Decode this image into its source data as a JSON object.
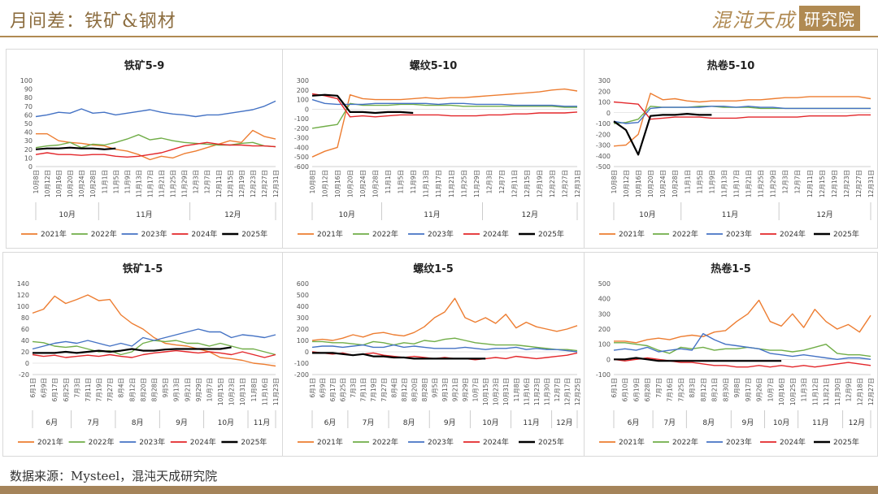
{
  "header": {
    "title": "月间差：铁矿&钢材",
    "logo_text": "混沌天成",
    "logo_box": "研究院"
  },
  "footer": {
    "source": "数据来源：Mysteel，混沌天成研究院"
  },
  "colors": {
    "2021年": "#ed7d31",
    "2022年": "#70ad47",
    "2023年": "#4472c4",
    "2024年": "#e3262a",
    "2025年": "#000000",
    "accent": "#b08a52"
  },
  "chart_data": [
    {
      "type": "line",
      "title": "铁矿5-9",
      "yticks": [
        "100",
        "90",
        "80",
        "70",
        "60",
        "50",
        "40",
        "30",
        "20",
        "10",
        "0"
      ],
      "ylim": [
        0,
        100
      ],
      "xticks": [
        "10月8日",
        "10月12日",
        "10月16日",
        "10月20日",
        "10月24日",
        "10月28日",
        "11月1日",
        "11月5日",
        "11月9日",
        "11月13日",
        "11月17日",
        "11月21日",
        "11月25日",
        "11月29日",
        "12月3日",
        "12月7日",
        "12月11日",
        "12月15日",
        "12月19日",
        "12月23日",
        "12月27日",
        "12月31日"
      ],
      "months": [
        "10月",
        "11月",
        "12月"
      ],
      "series": [
        {
          "name": "2021年",
          "values": [
            38,
            38,
            30,
            28,
            27,
            25,
            24,
            20,
            18,
            14,
            8,
            12,
            10,
            15,
            18,
            22,
            26,
            30,
            28,
            42,
            35,
            32
          ]
        },
        {
          "name": "2022年",
          "values": [
            22,
            24,
            25,
            28,
            22,
            26,
            25,
            28,
            32,
            37,
            31,
            33,
            30,
            28,
            27,
            26,
            25,
            25,
            27,
            28,
            24,
            23
          ]
        },
        {
          "name": "2023年",
          "values": [
            58,
            60,
            63,
            62,
            67,
            62,
            63,
            60,
            62,
            64,
            66,
            63,
            61,
            60,
            58,
            60,
            60,
            62,
            64,
            66,
            70,
            76
          ]
        },
        {
          "name": "2024年",
          "values": [
            14,
            16,
            14,
            14,
            13,
            14,
            14,
            12,
            11,
            12,
            14,
            16,
            20,
            24,
            26,
            28,
            26,
            25,
            25,
            24,
            24,
            23
          ]
        },
        {
          "name": "2025年",
          "values": [
            20,
            21,
            21,
            22,
            21,
            21,
            20,
            21,
            null,
            null,
            null,
            null,
            null,
            null,
            null,
            null,
            null,
            null,
            null,
            null,
            null,
            null
          ]
        }
      ],
      "legend": "bottom"
    },
    {
      "type": "line",
      "title": "螺纹5-10",
      "yticks": [
        "300",
        "200",
        "100",
        "0",
        "-100",
        "-200",
        "-300",
        "-400",
        "-500",
        "-600"
      ],
      "ylim": [
        -600,
        300
      ],
      "xticks": [
        "10月8日",
        "10月12日",
        "10月16日",
        "10月20日",
        "10月24日",
        "10月28日",
        "11月1日",
        "11月5日",
        "11月9日",
        "11月13日",
        "11月17日",
        "11月21日",
        "11月25日",
        "11月29日",
        "12月3日",
        "12月7日",
        "12月11日",
        "12月15日",
        "12月19日",
        "12月23日",
        "12月27日",
        "12月31日"
      ],
      "months": [
        "10月",
        "11月",
        "12月"
      ],
      "series": [
        {
          "name": "2021年",
          "values": [
            -500,
            -440,
            -400,
            150,
            110,
            100,
            100,
            100,
            110,
            120,
            110,
            120,
            120,
            130,
            140,
            150,
            160,
            170,
            180,
            200,
            210,
            190
          ]
        },
        {
          "name": "2022年",
          "values": [
            -200,
            -180,
            -160,
            60,
            40,
            40,
            40,
            50,
            50,
            40,
            40,
            40,
            30,
            30,
            30,
            30,
            30,
            30,
            30,
            30,
            20,
            20
          ]
        },
        {
          "name": "2023年",
          "values": [
            100,
            60,
            50,
            50,
            50,
            60,
            60,
            60,
            60,
            60,
            50,
            60,
            60,
            50,
            50,
            50,
            40,
            40,
            40,
            40,
            30,
            30
          ]
        },
        {
          "name": "2024年",
          "values": [
            160,
            140,
            110,
            -80,
            -70,
            -80,
            -70,
            -60,
            -60,
            -60,
            -60,
            -70,
            -70,
            -70,
            -60,
            -60,
            -50,
            -50,
            -40,
            -40,
            -40,
            -30
          ]
        },
        {
          "name": "2025年",
          "values": [
            140,
            150,
            140,
            -30,
            -30,
            -40,
            -30,
            -30,
            -40,
            null,
            null,
            null,
            null,
            null,
            null,
            null,
            null,
            null,
            null,
            null,
            null,
            null
          ]
        }
      ],
      "legend": "bottom"
    },
    {
      "type": "line",
      "title": "热卷5-10",
      "yticks": [
        "300",
        "200",
        "100",
        "0",
        "-100",
        "-200",
        "-300",
        "-400",
        "-500"
      ],
      "ylim": [
        -500,
        300
      ],
      "xticks": [
        "10月8日",
        "10月12日",
        "10月16日",
        "10月20日",
        "10月24日",
        "10月28日",
        "11月1日",
        "11月5日",
        "11月9日",
        "11月13日",
        "11月17日",
        "11月21日",
        "11月25日",
        "11月29日",
        "12月3日",
        "12月7日",
        "12月11日",
        "12月15日",
        "12月19日",
        "12月23日",
        "12月27日",
        "12月31日"
      ],
      "months": [
        "10月",
        "11月",
        "12月"
      ],
      "series": [
        {
          "name": "2021年",
          "values": [
            -310,
            -300,
            -200,
            180,
            120,
            130,
            110,
            100,
            110,
            110,
            110,
            120,
            120,
            130,
            140,
            140,
            150,
            150,
            150,
            150,
            150,
            130
          ]
        },
        {
          "name": "2022年",
          "values": [
            -100,
            -90,
            -60,
            60,
            50,
            50,
            50,
            60,
            60,
            50,
            50,
            50,
            40,
            40,
            40,
            40,
            40,
            40,
            40,
            40,
            40,
            40
          ]
        },
        {
          "name": "2023年",
          "values": [
            -80,
            -100,
            -90,
            40,
            50,
            50,
            50,
            50,
            60,
            60,
            50,
            60,
            50,
            50,
            40,
            40,
            40,
            40,
            40,
            40,
            40,
            40
          ]
        },
        {
          "name": "2024年",
          "values": [
            100,
            90,
            80,
            -60,
            -50,
            -40,
            -40,
            -40,
            -50,
            -50,
            -50,
            -40,
            -40,
            -40,
            -40,
            -40,
            -30,
            -30,
            -30,
            -30,
            -20,
            -20
          ]
        },
        {
          "name": "2025年",
          "values": [
            -80,
            -160,
            -390,
            -30,
            -20,
            -20,
            -10,
            -20,
            -20,
            null,
            null,
            null,
            null,
            null,
            null,
            null,
            null,
            null,
            null,
            null,
            null,
            null
          ]
        }
      ],
      "legend": "bottom"
    },
    {
      "type": "line",
      "title": "铁矿1-5",
      "yticks": [
        "140",
        "120",
        "100",
        "80",
        "60",
        "40",
        "20",
        "0",
        "-20"
      ],
      "ylim": [
        -20,
        140
      ],
      "xticks": [
        "6月1日",
        "6月9日",
        "6月17日",
        "6月25日",
        "7月3日",
        "7月11日",
        "7月19日",
        "7月27日",
        "8月4日",
        "8月12日",
        "8月20日",
        "8月28日",
        "9月5日",
        "9月13日",
        "9月21日",
        "9月29日",
        "10月7日",
        "10月15日",
        "10月23日",
        "10月31日",
        "11月8日",
        "11月16日",
        "11月23日"
      ],
      "months": [
        "6月",
        "7月",
        "8月",
        "9月",
        "10月",
        "11月"
      ],
      "series": [
        {
          "name": "2021年",
          "values": [
            88,
            95,
            118,
            105,
            112,
            120,
            110,
            112,
            85,
            70,
            60,
            45,
            35,
            32,
            30,
            25,
            20,
            10,
            8,
            5,
            0,
            -2,
            -5
          ]
        },
        {
          "name": "2022年",
          "values": [
            38,
            36,
            30,
            28,
            30,
            25,
            20,
            22,
            15,
            20,
            35,
            40,
            38,
            40,
            35,
            35,
            30,
            35,
            30,
            25,
            25,
            20,
            15
          ]
        },
        {
          "name": "2023年",
          "values": [
            25,
            30,
            35,
            38,
            35,
            40,
            35,
            30,
            35,
            30,
            45,
            40,
            45,
            50,
            55,
            60,
            55,
            55,
            45,
            50,
            48,
            45,
            50
          ]
        },
        {
          "name": "2024年",
          "values": [
            15,
            12,
            14,
            10,
            12,
            14,
            12,
            15,
            12,
            10,
            15,
            18,
            20,
            22,
            20,
            18,
            20,
            18,
            15,
            20,
            15,
            10,
            15
          ]
        },
        {
          "name": "2025年",
          "values": [
            18,
            18,
            18,
            20,
            18,
            20,
            22,
            20,
            22,
            25,
            22,
            22,
            24,
            25,
            25,
            25,
            25,
            25,
            28,
            null,
            null,
            null,
            null
          ]
        }
      ],
      "legend": "bottom"
    },
    {
      "type": "line",
      "title": "螺纹1-5",
      "yticks": [
        "600",
        "500",
        "400",
        "300",
        "200",
        "100",
        "0",
        "-100",
        "-200"
      ],
      "ylim": [
        -200,
        600
      ],
      "xticks": [
        "6月1日",
        "6月9日",
        "6月17日",
        "6月25日",
        "7月3日",
        "7月11日",
        "7月19日",
        "7月27日",
        "8月4日",
        "8月12日",
        "8月20日",
        "8月28日",
        "9月5日",
        "9月13日",
        "9月21日",
        "9月29日",
        "10月7日",
        "10月15日",
        "10月23日",
        "10月31日",
        "11月8日",
        "11月16日",
        "11月23日",
        "11月30日",
        "12月7日",
        "12月17日",
        "12月25日"
      ],
      "months": [
        "6月",
        "7月",
        "8月",
        "9月",
        "10月",
        "11月",
        "12月"
      ],
      "series": [
        {
          "name": "2021年",
          "values": [
            100,
            110,
            100,
            120,
            150,
            130,
            160,
            170,
            150,
            140,
            170,
            220,
            300,
            350,
            470,
            300,
            260,
            300,
            250,
            330,
            210,
            260,
            220,
            200,
            180,
            200,
            230
          ]
        },
        {
          "name": "2022年",
          "values": [
            90,
            90,
            80,
            80,
            70,
            60,
            90,
            80,
            60,
            80,
            70,
            100,
            90,
            110,
            120,
            100,
            80,
            70,
            60,
            60,
            60,
            50,
            40,
            30,
            20,
            20,
            10
          ]
        },
        {
          "name": "2023年",
          "values": [
            40,
            50,
            50,
            40,
            50,
            60,
            40,
            40,
            60,
            40,
            50,
            40,
            30,
            30,
            30,
            40,
            30,
            20,
            30,
            30,
            40,
            20,
            30,
            20,
            20,
            10,
            0
          ]
        },
        {
          "name": "2024年",
          "values": [
            0,
            -10,
            -20,
            -10,
            -30,
            -20,
            -10,
            -30,
            -40,
            -50,
            -40,
            -50,
            -60,
            -50,
            -60,
            -60,
            -70,
            -60,
            -50,
            -60,
            -40,
            -50,
            -60,
            -50,
            -40,
            -30,
            -10
          ]
        },
        {
          "name": "2025年",
          "values": [
            -10,
            -10,
            -10,
            -20,
            -30,
            -20,
            -40,
            -40,
            -50,
            -50,
            -60,
            -60,
            -60,
            -60,
            -60,
            -60,
            -60,
            -60,
            null,
            null,
            null,
            null,
            null,
            null,
            null,
            null,
            null
          ]
        }
      ],
      "legend": "bottom"
    },
    {
      "type": "line",
      "title": "热卷1-5",
      "yticks": [
        "500",
        "400",
        "300",
        "200",
        "100",
        "0",
        "-100"
      ],
      "ylim": [
        -100,
        500
      ],
      "xticks": [
        "6月1日",
        "6月10日",
        "6月19日",
        "6月28日",
        "7月7日",
        "7月16日",
        "7月25日",
        "8月3日",
        "8月12日",
        "8月21日",
        "8月30日",
        "9月8日",
        "9月17日",
        "9月26日",
        "10月7日",
        "10月16日",
        "10月25日",
        "11月3日",
        "11月12日",
        "11月21日",
        "11月30日",
        "12月9日",
        "12月18日",
        "12月27日"
      ],
      "months": [
        "6月",
        "7月",
        "8月",
        "9月",
        "10月",
        "11月",
        "12月"
      ],
      "series": [
        {
          "name": "2021年",
          "values": [
            120,
            120,
            110,
            130,
            140,
            130,
            150,
            160,
            150,
            180,
            190,
            250,
            300,
            390,
            250,
            220,
            300,
            210,
            330,
            250,
            200,
            230,
            180,
            290
          ]
        },
        {
          "name": "2022年",
          "values": [
            110,
            110,
            100,
            90,
            60,
            40,
            80,
            70,
            80,
            60,
            70,
            70,
            80,
            70,
            60,
            60,
            50,
            60,
            80,
            100,
            40,
            30,
            30,
            20
          ]
        },
        {
          "name": "2023年",
          "values": [
            60,
            70,
            60,
            80,
            50,
            60,
            70,
            60,
            170,
            130,
            100,
            90,
            80,
            70,
            40,
            30,
            20,
            30,
            20,
            10,
            0,
            10,
            10,
            0
          ]
        },
        {
          "name": "2024年",
          "values": [
            0,
            -10,
            0,
            10,
            0,
            -10,
            -20,
            -20,
            -30,
            -40,
            -40,
            -50,
            -50,
            -40,
            -50,
            -40,
            -50,
            -40,
            -50,
            -40,
            -30,
            -20,
            -30,
            -40
          ]
        },
        {
          "name": "2025年",
          "values": [
            0,
            0,
            10,
            0,
            -10,
            -10,
            -10,
            -10,
            -10,
            -10,
            -10,
            -10,
            -10,
            -10,
            -10,
            -10,
            null,
            null,
            null,
            null,
            null,
            null,
            null,
            null
          ]
        }
      ],
      "legend": "bottom"
    }
  ]
}
